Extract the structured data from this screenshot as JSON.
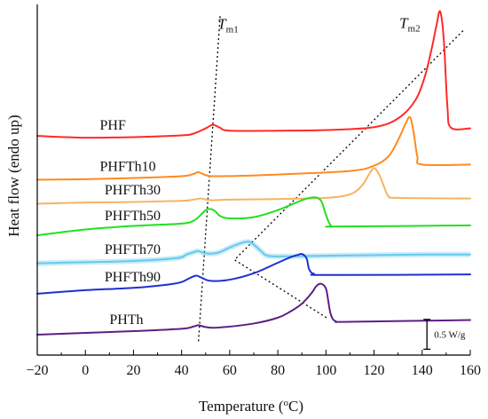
{
  "chart_data": {
    "type": "line",
    "title": "",
    "xlabel": "Temperature (°C)",
    "xlabel_parts": {
      "prefix": "Temperature (",
      "sup": "o",
      "suffix": "C)"
    },
    "ylabel": "Heat flow (endo up)",
    "xlim": [
      -20,
      160
    ],
    "xticks": [
      -20,
      0,
      20,
      40,
      60,
      80,
      100,
      120,
      140,
      160
    ],
    "xtick_labels": [
      "−20",
      "0",
      "20",
      "40",
      "60",
      "80",
      "100",
      "120",
      "140",
      "160"
    ],
    "yticks_visible": false,
    "grid": false,
    "legend": "none",
    "scale_bar": {
      "label": "0.5 W/g",
      "x": 142
    },
    "annotations": [
      {
        "id": "tm1",
        "main": "T",
        "sub": "m1",
        "x": 52
      },
      {
        "id": "tm2",
        "main": "T",
        "sub": "m2",
        "x": 132
      }
    ],
    "series": [
      {
        "name": "PHF",
        "color": "#ff2a2a",
        "label_x": 6,
        "x": [
          -20,
          0,
          20,
          40,
          45,
          50,
          53,
          56,
          60,
          80,
          100,
          120,
          130,
          137,
          141,
          144,
          146,
          147.5,
          149,
          150.5,
          152,
          160
        ],
        "y": [
          19.5,
          19.2,
          19.3,
          19.6,
          19.9,
          20.8,
          21.4,
          20.9,
          20.4,
          20.4,
          20.5,
          21.0,
          22.5,
          25.5,
          29.5,
          34.5,
          38.5,
          40.8,
          36.0,
          24.5,
          20.9,
          20.8
        ]
      },
      {
        "name": "PHFTh10",
        "color": "#ff8a1f",
        "label_x": 6,
        "x": [
          -20,
          0,
          20,
          40,
          45,
          47,
          50,
          55,
          80,
          110,
          120,
          126,
          130,
          133,
          135,
          136.5,
          138,
          140,
          160
        ],
        "y": [
          12.0,
          12.1,
          12.3,
          12.6,
          13.0,
          13.3,
          12.8,
          12.6,
          12.9,
          13.5,
          14.4,
          16.0,
          18.8,
          21.5,
          22.7,
          20.0,
          16.0,
          14.6,
          14.6
        ]
      },
      {
        "name": "PHFTh30",
        "color": "#f5b461",
        "label_x": 8,
        "x": [
          -20,
          0,
          20,
          40,
          45,
          48,
          52,
          60,
          80,
          100,
          110,
          115,
          118,
          120,
          122,
          124,
          126,
          130,
          160
        ],
        "y": [
          7.9,
          8.1,
          8.2,
          8.4,
          8.6,
          8.8,
          8.5,
          8.6,
          8.7,
          8.9,
          9.5,
          11.0,
          13.0,
          14.0,
          13.0,
          11.0,
          9.2,
          8.9,
          8.8
        ]
      },
      {
        "name": "PHFTh50",
        "color": "#22e022",
        "label_x": 8,
        "x": [
          -20,
          0,
          20,
          40,
          45,
          48,
          50,
          52,
          54,
          56,
          60,
          70,
          80,
          90,
          95,
          98,
          100,
          102,
          105,
          160
        ],
        "y": [
          2.5,
          3.5,
          4.1,
          4.5,
          5.0,
          6.0,
          6.8,
          7.0,
          6.6,
          5.8,
          5.4,
          5.6,
          6.8,
          8.5,
          9.0,
          8.4,
          6.0,
          4.2,
          4.0,
          4.2
        ]
      },
      {
        "name": "PHFTh70",
        "color": "#68c8ee",
        "label_x": 8,
        "x": [
          -20,
          0,
          20,
          38,
          42,
          45,
          47,
          50,
          55,
          60,
          65,
          68,
          70,
          73,
          75,
          78,
          85,
          100,
          120,
          140,
          160
        ],
        "y": [
          -2.3,
          -2.1,
          -1.9,
          -1.4,
          -0.8,
          -0.4,
          -0.2,
          -0.6,
          -0.5,
          0.4,
          1.2,
          1.4,
          0.9,
          -0.2,
          -0.9,
          -1.1,
          -1.1,
          -1.0,
          -0.9,
          -0.8,
          -0.8
        ]
      },
      {
        "name": "PHFTh90",
        "color": "#1f2fd2",
        "label_x": 8,
        "x": [
          -20,
          0,
          20,
          35,
          40,
          43,
          46,
          48,
          52,
          60,
          70,
          80,
          85,
          88,
          90,
          92,
          93,
          95,
          100,
          160
        ],
        "y": [
          -7.5,
          -6.9,
          -6.5,
          -5.9,
          -5.5,
          -4.9,
          -4.4,
          -4.7,
          -5.3,
          -5.1,
          -4.0,
          -2.2,
          -1.3,
          -0.9,
          -0.7,
          -1.5,
          -3.3,
          -4.1,
          -4.3,
          -4.2
        ]
      },
      {
        "name": "PHTh",
        "color": "#5c2084",
        "label_x": 10,
        "x": [
          -20,
          0,
          20,
          40,
          45,
          47,
          50,
          55,
          70,
          80,
          85,
          90,
          94,
          96,
          98,
          100,
          101,
          102,
          104,
          110,
          160
        ],
        "y": [
          -14.5,
          -14.2,
          -13.9,
          -13.5,
          -13.1,
          -12.9,
          -13.2,
          -13.3,
          -12.6,
          -11.6,
          -10.6,
          -9.2,
          -7.4,
          -6.2,
          -5.8,
          -6.6,
          -8.8,
          -11.0,
          -12.2,
          -12.3,
          -12.0
        ]
      }
    ]
  }
}
